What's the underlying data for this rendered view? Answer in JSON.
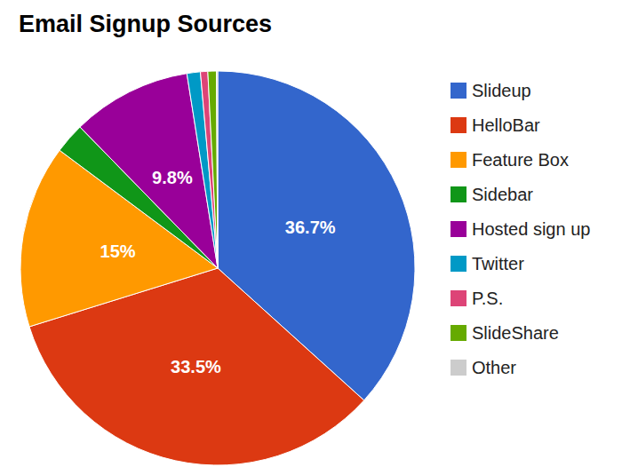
{
  "chart_data": {
    "type": "pie",
    "title": "Email Signup Sources",
    "categories": [
      "Slideup",
      "HelloBar",
      "Feature Box",
      "Sidebar",
      "Hosted sign up",
      "Twitter",
      "P.S.",
      "SlideShare",
      "Other"
    ],
    "values": [
      36.7,
      33.5,
      15,
      2.5,
      9.8,
      1.1,
      0.6,
      0.7,
      0.1
    ],
    "value_labels": [
      "36.7%",
      "33.5%",
      "15%",
      null,
      "9.8%",
      null,
      null,
      null,
      null
    ],
    "colors": [
      "#3366cc",
      "#dc3912",
      "#ff9900",
      "#109618",
      "#990099",
      "#0099c6",
      "#dd4477",
      "#66aa00",
      "#cccccc"
    ],
    "data_labels": true,
    "legend": "right"
  }
}
